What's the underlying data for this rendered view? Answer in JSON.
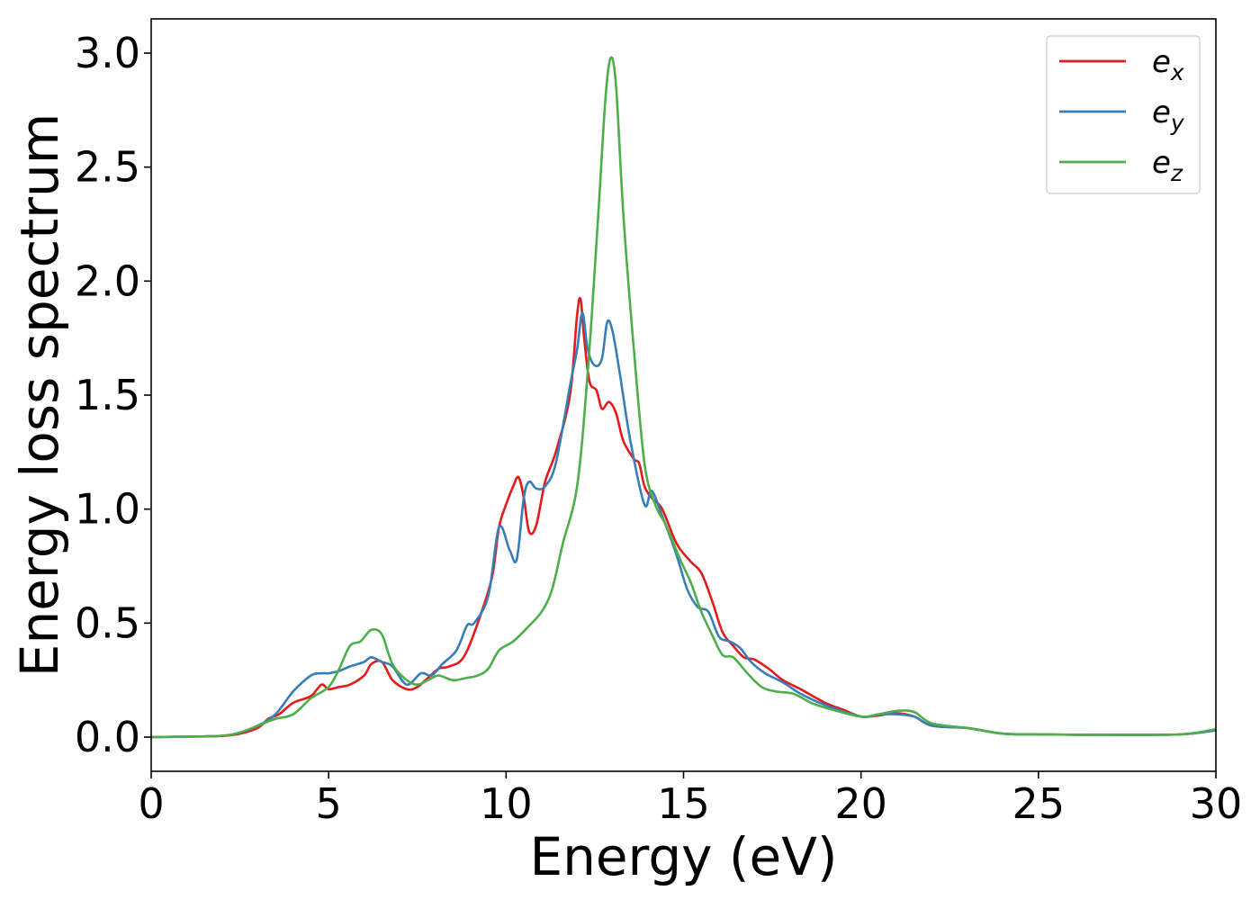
{
  "chart_data": {
    "type": "line",
    "xlabel": "Energy (eV)",
    "ylabel": "Energy loss spectrum",
    "xlim": [
      0,
      30
    ],
    "ylim": [
      -0.15,
      3.15
    ],
    "xticks": [
      0,
      5,
      10,
      15,
      20,
      25,
      30
    ],
    "xtick_labels": [
      "0",
      "5",
      "10",
      "15",
      "20",
      "25",
      "30"
    ],
    "yticks": [
      0.0,
      0.5,
      1.0,
      1.5,
      2.0,
      2.5,
      3.0
    ],
    "ytick_labels": [
      "0.0",
      "0.5",
      "1.0",
      "1.5",
      "2.0",
      "2.5",
      "3.0"
    ],
    "grid": false,
    "legend_position": "top-right",
    "series": [
      {
        "name": "e_x",
        "label_base": "e",
        "label_sub": "x",
        "color": "#e41a1c",
        "points": [
          [
            0,
            0
          ],
          [
            1,
            0.002
          ],
          [
            2,
            0.005
          ],
          [
            2.5,
            0.015
          ],
          [
            3,
            0.04
          ],
          [
            3.3,
            0.08
          ],
          [
            3.6,
            0.1
          ],
          [
            4,
            0.15
          ],
          [
            4.5,
            0.18
          ],
          [
            4.8,
            0.23
          ],
          [
            5,
            0.21
          ],
          [
            5.3,
            0.22
          ],
          [
            5.6,
            0.23
          ],
          [
            6,
            0.27
          ],
          [
            6.2,
            0.32
          ],
          [
            6.5,
            0.33
          ],
          [
            6.8,
            0.25
          ],
          [
            7.2,
            0.21
          ],
          [
            7.5,
            0.22
          ],
          [
            7.8,
            0.26
          ],
          [
            8.1,
            0.3
          ],
          [
            8.4,
            0.31
          ],
          [
            8.8,
            0.35
          ],
          [
            9.2,
            0.5
          ],
          [
            9.6,
            0.7
          ],
          [
            9.8,
            0.92
          ],
          [
            10,
            1.02
          ],
          [
            10.2,
            1.1
          ],
          [
            10.35,
            1.14
          ],
          [
            10.5,
            1.05
          ],
          [
            10.65,
            0.9
          ],
          [
            10.85,
            0.93
          ],
          [
            11.1,
            1.12
          ],
          [
            11.4,
            1.25
          ],
          [
            11.8,
            1.5
          ],
          [
            12.0,
            1.85
          ],
          [
            12.1,
            1.92
          ],
          [
            12.2,
            1.75
          ],
          [
            12.35,
            1.56
          ],
          [
            12.55,
            1.52
          ],
          [
            12.7,
            1.44
          ],
          [
            12.9,
            1.47
          ],
          [
            13.1,
            1.42
          ],
          [
            13.3,
            1.3
          ],
          [
            13.6,
            1.22
          ],
          [
            13.75,
            1.2
          ],
          [
            13.9,
            1.1
          ],
          [
            14.1,
            1.05
          ],
          [
            14.4,
            1.0
          ],
          [
            14.8,
            0.85
          ],
          [
            15.2,
            0.77
          ],
          [
            15.5,
            0.72
          ],
          [
            15.8,
            0.6
          ],
          [
            16.1,
            0.46
          ],
          [
            16.4,
            0.4
          ],
          [
            16.7,
            0.35
          ],
          [
            17.0,
            0.34
          ],
          [
            17.4,
            0.3
          ],
          [
            17.8,
            0.25
          ],
          [
            18.3,
            0.21
          ],
          [
            19.0,
            0.15
          ],
          [
            19.5,
            0.12
          ],
          [
            20.0,
            0.09
          ],
          [
            20.5,
            0.095
          ],
          [
            21.0,
            0.105
          ],
          [
            21.5,
            0.09
          ],
          [
            22.0,
            0.05
          ],
          [
            23.0,
            0.04
          ],
          [
            24.0,
            0.015
          ],
          [
            25.0,
            0.012
          ],
          [
            27.0,
            0.01
          ],
          [
            29.0,
            0.012
          ],
          [
            30,
            0.03
          ]
        ]
      },
      {
        "name": "e_y",
        "label_base": "e",
        "label_sub": "y",
        "color": "#377eb8",
        "points": [
          [
            0,
            0
          ],
          [
            1,
            0.002
          ],
          [
            2,
            0.006
          ],
          [
            2.5,
            0.02
          ],
          [
            3,
            0.05
          ],
          [
            3.5,
            0.1
          ],
          [
            4,
            0.2
          ],
          [
            4.5,
            0.27
          ],
          [
            4.8,
            0.28
          ],
          [
            5,
            0.28
          ],
          [
            5.3,
            0.29
          ],
          [
            5.6,
            0.31
          ],
          [
            6,
            0.33
          ],
          [
            6.2,
            0.35
          ],
          [
            6.5,
            0.33
          ],
          [
            6.8,
            0.31
          ],
          [
            7.2,
            0.23
          ],
          [
            7.6,
            0.28
          ],
          [
            7.9,
            0.27
          ],
          [
            8.2,
            0.32
          ],
          [
            8.6,
            0.38
          ],
          [
            8.9,
            0.49
          ],
          [
            9.1,
            0.5
          ],
          [
            9.5,
            0.62
          ],
          [
            9.8,
            0.92
          ],
          [
            10.1,
            0.82
          ],
          [
            10.3,
            0.78
          ],
          [
            10.5,
            1.05
          ],
          [
            10.65,
            1.12
          ],
          [
            10.85,
            1.09
          ],
          [
            11.1,
            1.1
          ],
          [
            11.4,
            1.2
          ],
          [
            11.8,
            1.54
          ],
          [
            12.0,
            1.7
          ],
          [
            12.15,
            1.86
          ],
          [
            12.3,
            1.7
          ],
          [
            12.5,
            1.63
          ],
          [
            12.7,
            1.66
          ],
          [
            12.85,
            1.82
          ],
          [
            13.0,
            1.78
          ],
          [
            13.2,
            1.6
          ],
          [
            13.5,
            1.3
          ],
          [
            13.9,
            1.02
          ],
          [
            14.1,
            1.08
          ],
          [
            14.4,
            0.97
          ],
          [
            14.8,
            0.8
          ],
          [
            15.1,
            0.65
          ],
          [
            15.4,
            0.57
          ],
          [
            15.7,
            0.55
          ],
          [
            16.0,
            0.44
          ],
          [
            16.3,
            0.42
          ],
          [
            16.6,
            0.39
          ],
          [
            16.9,
            0.33
          ],
          [
            17.3,
            0.28
          ],
          [
            17.8,
            0.24
          ],
          [
            18.3,
            0.19
          ],
          [
            19.0,
            0.14
          ],
          [
            20.0,
            0.09
          ],
          [
            20.5,
            0.1
          ],
          [
            21.0,
            0.1
          ],
          [
            21.5,
            0.09
          ],
          [
            22.0,
            0.05
          ],
          [
            23.0,
            0.04
          ],
          [
            24.0,
            0.015
          ],
          [
            25.0,
            0.012
          ],
          [
            27.0,
            0.01
          ],
          [
            29.0,
            0.012
          ],
          [
            30,
            0.03
          ]
        ]
      },
      {
        "name": "e_z",
        "label_base": "e",
        "label_sub": "z",
        "color": "#4daf4a",
        "points": [
          [
            0,
            0
          ],
          [
            1,
            0.002
          ],
          [
            2,
            0.006
          ],
          [
            2.5,
            0.02
          ],
          [
            3,
            0.05
          ],
          [
            3.5,
            0.08
          ],
          [
            4,
            0.1
          ],
          [
            4.5,
            0.17
          ],
          [
            5,
            0.22
          ],
          [
            5.3,
            0.3
          ],
          [
            5.6,
            0.4
          ],
          [
            5.9,
            0.42
          ],
          [
            6.2,
            0.47
          ],
          [
            6.5,
            0.45
          ],
          [
            6.8,
            0.32
          ],
          [
            7.2,
            0.25
          ],
          [
            7.5,
            0.23
          ],
          [
            7.8,
            0.25
          ],
          [
            8.1,
            0.27
          ],
          [
            8.5,
            0.25
          ],
          [
            8.9,
            0.26
          ],
          [
            9.2,
            0.27
          ],
          [
            9.5,
            0.3
          ],
          [
            9.8,
            0.38
          ],
          [
            10.2,
            0.42
          ],
          [
            10.6,
            0.48
          ],
          [
            11.0,
            0.55
          ],
          [
            11.3,
            0.65
          ],
          [
            11.6,
            0.85
          ],
          [
            12.0,
            1.1
          ],
          [
            12.3,
            1.6
          ],
          [
            12.6,
            2.3
          ],
          [
            12.8,
            2.8
          ],
          [
            12.95,
            2.98
          ],
          [
            13.1,
            2.85
          ],
          [
            13.3,
            2.3
          ],
          [
            13.6,
            1.7
          ],
          [
            13.9,
            1.2
          ],
          [
            14.2,
            1.02
          ],
          [
            14.5,
            0.93
          ],
          [
            14.9,
            0.78
          ],
          [
            15.2,
            0.68
          ],
          [
            15.5,
            0.55
          ],
          [
            15.8,
            0.45
          ],
          [
            16.1,
            0.36
          ],
          [
            16.4,
            0.35
          ],
          [
            16.8,
            0.28
          ],
          [
            17.2,
            0.22
          ],
          [
            17.6,
            0.2
          ],
          [
            18.1,
            0.19
          ],
          [
            18.6,
            0.15
          ],
          [
            19.2,
            0.12
          ],
          [
            20.0,
            0.09
          ],
          [
            20.5,
            0.1
          ],
          [
            21.0,
            0.115
          ],
          [
            21.5,
            0.11
          ],
          [
            22.0,
            0.06
          ],
          [
            23.0,
            0.04
          ],
          [
            24.0,
            0.015
          ],
          [
            25.0,
            0.012
          ],
          [
            27.0,
            0.01
          ],
          [
            29.0,
            0.012
          ],
          [
            30,
            0.035
          ]
        ]
      }
    ]
  }
}
